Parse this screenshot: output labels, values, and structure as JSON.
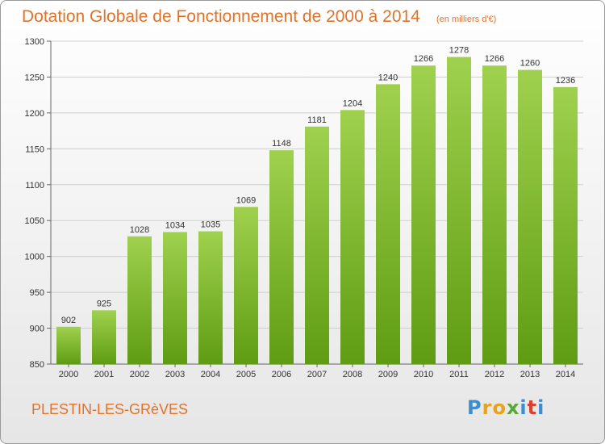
{
  "title": "Dotation Globale de Fonctionnement de 2000 à 2014",
  "unit_note": "(en milliers d'€)",
  "place": "PLESTIN-LES-GRèVES",
  "logo": {
    "text": "Proxiti",
    "letters": [
      {
        "ch": "P",
        "color": "#3a8fd1"
      },
      {
        "ch": "r",
        "color": "#e8a21b"
      },
      {
        "ch": "o",
        "color": "#e8a21b"
      },
      {
        "ch": "x",
        "color": "#5aa83a"
      },
      {
        "ch": "i",
        "color": "#3a8fd1"
      },
      {
        "ch": "t",
        "color": "#d9412c"
      },
      {
        "ch": "i",
        "color": "#3a8fd1"
      }
    ]
  },
  "colors": {
    "title": "#e0732a",
    "bar_top": "#9fd14e",
    "bar_bottom": "#5f9c13",
    "grid": "#cfcfcf",
    "axis_text": "#333333"
  },
  "chart_data": {
    "type": "bar",
    "categories": [
      "2000",
      "2001",
      "2002",
      "2003",
      "2004",
      "2005",
      "2006",
      "2007",
      "2008",
      "2009",
      "2010",
      "2011",
      "2012",
      "2013",
      "2014"
    ],
    "values": [
      902,
      925,
      1028,
      1034,
      1035,
      1069,
      1148,
      1181,
      1204,
      1240,
      1266,
      1278,
      1266,
      1260,
      1236
    ],
    "ylim": [
      850,
      1300
    ],
    "yticks": [
      850,
      900,
      950,
      1000,
      1050,
      1100,
      1150,
      1200,
      1250,
      1300
    ],
    "grid": true,
    "data_labels": true
  }
}
